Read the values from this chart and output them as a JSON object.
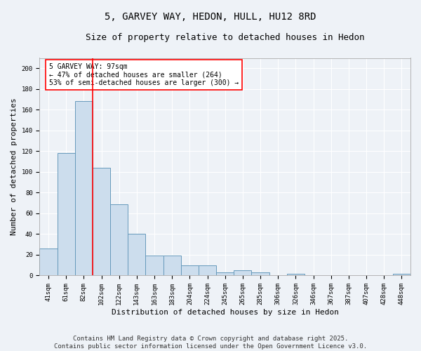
{
  "title": "5, GARVEY WAY, HEDON, HULL, HU12 8RD",
  "subtitle": "Size of property relative to detached houses in Hedon",
  "xlabel": "Distribution of detached houses by size in Hedon",
  "ylabel": "Number of detached properties",
  "categories": [
    "41sqm",
    "61sqm",
    "82sqm",
    "102sqm",
    "122sqm",
    "143sqm",
    "163sqm",
    "183sqm",
    "204sqm",
    "224sqm",
    "245sqm",
    "265sqm",
    "285sqm",
    "306sqm",
    "326sqm",
    "346sqm",
    "367sqm",
    "387sqm",
    "407sqm",
    "428sqm",
    "448sqm"
  ],
  "values": [
    26,
    118,
    168,
    104,
    69,
    40,
    19,
    19,
    10,
    10,
    3,
    5,
    3,
    0,
    2,
    0,
    0,
    0,
    0,
    0,
    2
  ],
  "bar_color": "#ccdded",
  "bar_edge_color": "#6699bb",
  "red_line_x": 2.5,
  "annotation_text": "5 GARVEY WAY: 97sqm\n← 47% of detached houses are smaller (264)\n53% of semi-detached houses are larger (300) →",
  "annotation_box_color": "white",
  "annotation_box_edge_color": "red",
  "red_line_color": "red",
  "ylim": [
    0,
    210
  ],
  "yticks": [
    0,
    20,
    40,
    60,
    80,
    100,
    120,
    140,
    160,
    180,
    200
  ],
  "footer": "Contains HM Land Registry data © Crown copyright and database right 2025.\nContains public sector information licensed under the Open Government Licence v3.0.",
  "background_color": "#eef2f7",
  "grid_color": "white",
  "title_fontsize": 10,
  "subtitle_fontsize": 9,
  "axis_label_fontsize": 8,
  "tick_fontsize": 6.5,
  "annotation_fontsize": 7,
  "footer_fontsize": 6.5
}
